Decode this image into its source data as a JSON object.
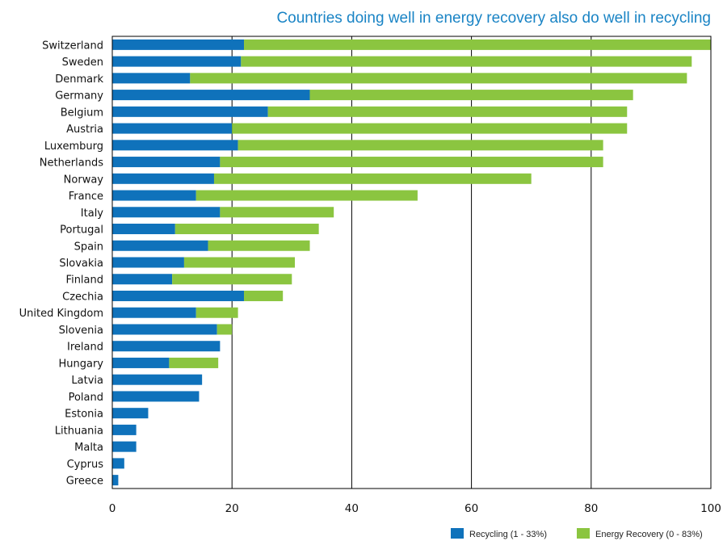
{
  "chart_data": {
    "type": "bar",
    "orientation": "horizontal",
    "stacked": true,
    "title": "Countries doing well in energy recovery also do well in recycling",
    "xlabel": "",
    "ylabel": "",
    "xlim": [
      0,
      100
    ],
    "xticks": [
      0,
      20,
      40,
      60,
      80,
      100
    ],
    "grid": "vertical lines at major ticks",
    "legend_position": "bottom-right",
    "categories": [
      "Switzerland",
      "Sweden",
      "Denmark",
      "Germany",
      "Belgium",
      "Austria",
      "Luxemburg",
      "Netherlands",
      "Norway",
      "France",
      "Italy",
      "Portugal",
      "Spain",
      "Slovakia",
      "Finland",
      "Czechia",
      "United Kingdom",
      "Slovenia",
      "Ireland",
      "Hungary",
      "Latvia",
      "Poland",
      "Estonia",
      "Lithuania",
      "Malta",
      "Cyprus",
      "Greece"
    ],
    "series": [
      {
        "name": "Recycling (1 - 33%)",
        "color": "#0f72bb",
        "values": [
          22,
          21.5,
          13,
          33,
          26,
          20,
          21,
          18,
          17,
          14,
          18,
          10.5,
          16,
          12,
          10,
          22,
          14,
          17.5,
          18,
          9.5,
          15,
          14.5,
          6,
          4,
          4,
          2,
          1
        ]
      },
      {
        "name": "Energy Recovery (0 - 83%)",
        "color": "#8bc540",
        "values": [
          78,
          75.3,
          83,
          54,
          60,
          66,
          61,
          64,
          53,
          37,
          19,
          24,
          17,
          18.5,
          20,
          6.5,
          7,
          2.5,
          0,
          8.2,
          0,
          0,
          0,
          0,
          0,
          0,
          0
        ]
      }
    ]
  }
}
